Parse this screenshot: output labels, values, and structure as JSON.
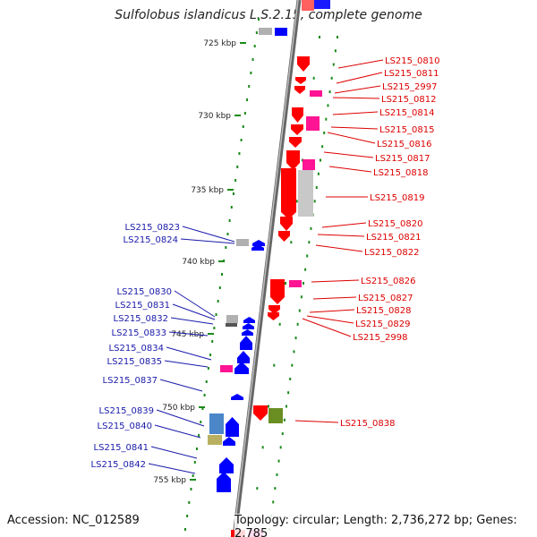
{
  "title": "Sulfolobus islandicus L.S.2.15, complete genome",
  "footer": {
    "accession": "Accession: NC_012589",
    "summary": "Topology: circular; Length: 2,736,272 bp; Genes: 2,785"
  },
  "colors": {
    "backbone": "#8a8a8a",
    "tick": "#1a8a1a",
    "forward_gene": "#ff0000",
    "reverse_gene": "#0000ff",
    "forward_label": "#dd0000",
    "reverse_label": "#1a1aaa"
  },
  "scale_labels": [
    "725 kbp",
    "730 kbp",
    "735 kbp",
    "740 kbp",
    "745 kbp",
    "750 kbp",
    "755 kbp"
  ],
  "right_labels": [
    "LS215_0810",
    "LS215_0811",
    "LS215_2997",
    "LS215_0812",
    "LS215_0814",
    "LS215_0815",
    "LS215_0816",
    "LS215_0817",
    "LS215_0818",
    "LS215_0819",
    "LS215_0820",
    "LS215_0821",
    "LS215_0822",
    "LS215_0826",
    "LS215_0827",
    "LS215_0828",
    "LS215_0829",
    "LS215_2998",
    "LS215_0838"
  ],
  "left_labels": [
    "LS215_0823",
    "LS215_0824",
    "LS215_0830",
    "LS215_0831",
    "LS215_0832",
    "LS215_0833",
    "LS215_0834",
    "LS215_0835",
    "LS215_0837",
    "LS215_0839",
    "LS215_0840",
    "LS215_0841",
    "LS215_0842"
  ]
}
